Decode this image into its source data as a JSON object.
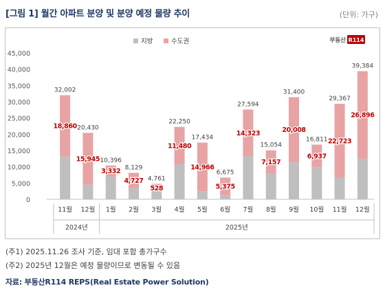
{
  "header": {
    "title": "[그림 1] 월간 아파트 분양 및 분양 예정 물량 추이",
    "unit": "(단위: 가구)"
  },
  "brand": {
    "logo_text": "부동산",
    "logo_badge": "R114"
  },
  "notes": {
    "note1": "(주1) 2025.11.26 조사 기준, 임대 포함 총가구수",
    "note2": "(주2) 2025년 12월은 예정 물량이므로 변동될 수 있음"
  },
  "source": "자료: 부동산R114 REPS(Real Estate Power Solution)",
  "colors": {
    "local": "#bfbfbf",
    "capital": "#e8a3a5",
    "capital_label": "#c00000",
    "axis": "#595959"
  },
  "chart_data": {
    "type": "bar",
    "stacked": true,
    "categories": [
      "11월",
      "12월",
      "1월",
      "2월",
      "3월",
      "4월",
      "5월",
      "6월",
      "7월",
      "8월",
      "9월",
      "10월",
      "11월",
      "12월"
    ],
    "year_groups": [
      {
        "label": "2024년",
        "start": 0,
        "end": 1
      },
      {
        "label": "2025년",
        "start": 2,
        "end": 13
      }
    ],
    "series": [
      {
        "name": "지방",
        "values": [
          13142,
          4485,
          7064,
          3402,
          4233,
          10770,
          2468,
          1300,
          13271,
          7897,
          11392,
          9874,
          6644,
          12488
        ]
      },
      {
        "name": "수도권",
        "values": [
          18860,
          15945,
          3332,
          4727,
          528,
          11480,
          14966,
          5375,
          14323,
          7157,
          20008,
          6937,
          22723,
          26896
        ]
      }
    ],
    "totals": [
      32002,
      20430,
      10396,
      8129,
      4761,
      22250,
      17434,
      6675,
      27594,
      15054,
      31400,
      16811,
      29367,
      39384
    ],
    "ylim": [
      0,
      45000
    ],
    "yticks": [
      0,
      5000,
      10000,
      15000,
      20000,
      25000,
      30000,
      35000,
      40000,
      45000
    ],
    "legend": "top-left",
    "xlabel": "",
    "ylabel": ""
  }
}
